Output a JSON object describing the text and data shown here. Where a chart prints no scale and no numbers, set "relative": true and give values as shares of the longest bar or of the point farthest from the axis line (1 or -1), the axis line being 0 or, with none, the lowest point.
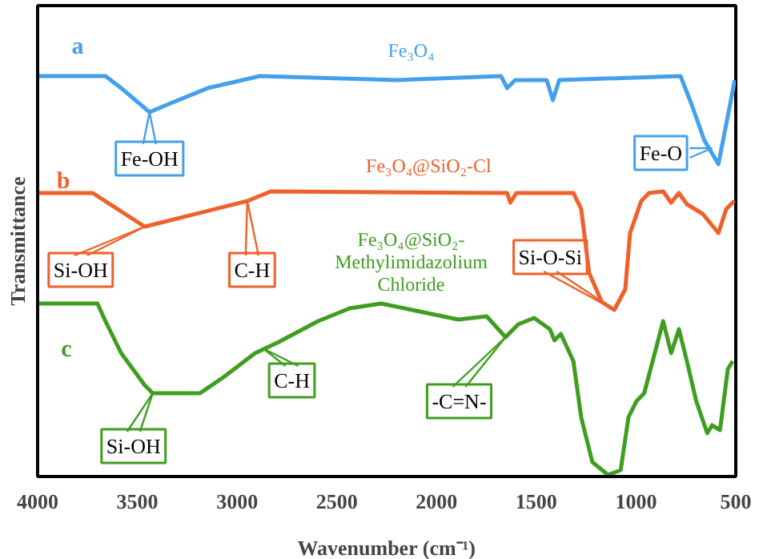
{
  "chart_data": {
    "type": "line",
    "relative": true,
    "xlabel": "Wavenumber (cm⁻¹)",
    "ylabel": "Transmittance",
    "xlim": [
      4000,
      500
    ],
    "xticks": [
      4000,
      3500,
      3000,
      2500,
      2000,
      1500,
      1000,
      500
    ],
    "grid": false,
    "series": [
      {
        "name": "a",
        "color": "#42a0ee",
        "x": [
          4000,
          3660,
          3581,
          3439,
          3344,
          3147,
          2886,
          2199,
          1677,
          1646,
          1606,
          1448,
          1417,
          1385,
          777,
          722,
          658,
          587,
          540,
          505
        ],
        "values": [
          1.0,
          1.0,
          0.97,
          0.91,
          0.93,
          0.97,
          1.0,
          0.99,
          1.0,
          0.97,
          0.99,
          0.99,
          0.94,
          0.99,
          1.0,
          0.93,
          0.84,
          0.78,
          0.9,
          0.99
        ]
      },
      {
        "name": "b",
        "color": "#f0602a",
        "x": [
          4000,
          3724,
          3463,
          2949,
          2831,
          1646,
          1630,
          1600,
          1448,
          1314,
          1275,
          1235,
          1172,
          1109,
          1054,
          1030,
          974,
          935,
          864,
          824,
          785,
          745,
          666,
          587,
          548,
          508
        ],
        "values": [
          0.708,
          0.708,
          0.624,
          0.688,
          0.712,
          0.708,
          0.684,
          0.708,
          0.708,
          0.708,
          0.668,
          0.508,
          0.436,
          0.416,
          0.468,
          0.608,
          0.688,
          0.708,
          0.712,
          0.684,
          0.708,
          0.68,
          0.656,
          0.608,
          0.668,
          0.688
        ]
      },
      {
        "name": "c",
        "color": "#3f9e1f",
        "x": [
          4000,
          3700,
          3660,
          3581,
          3463,
          3423,
          3186,
          3068,
          2910,
          2791,
          2594,
          2436,
          2278,
          1891,
          1749,
          1654,
          1591,
          1511,
          1432,
          1409,
          1377,
          1314,
          1275,
          1219,
          1140,
          1077,
          1038,
          998,
          959,
          864,
          824,
          785,
          745,
          698,
          643,
          619,
          579,
          540,
          516
        ],
        "values": [
          0.432,
          0.432,
          0.388,
          0.308,
          0.228,
          0.208,
          0.208,
          0.248,
          0.308,
          0.336,
          0.388,
          0.42,
          0.432,
          0.392,
          0.4,
          0.348,
          0.38,
          0.396,
          0.368,
          0.34,
          0.356,
          0.288,
          0.148,
          0.036,
          0.004,
          0.016,
          0.148,
          0.188,
          0.208,
          0.388,
          0.308,
          0.368,
          0.288,
          0.188,
          0.108,
          0.128,
          0.116,
          0.268,
          0.288
        ]
      }
    ],
    "annotations": [
      "Fe₃O₄",
      "Fe₃O₄@SiO₂-Cl",
      "Fe₃O₄@SiO₂-\nMethylimidazolium\nChloride",
      {
        "text": "Fe-OH",
        "x": 3439,
        "y": 0.91
      },
      {
        "text": "Fe-O",
        "x": 619,
        "y": 0.82
      },
      {
        "text": "Si-OH",
        "x": 3463,
        "y": 0.624
      },
      {
        "text": "C-H",
        "x": 2949,
        "y": 0.688
      },
      {
        "text": "Si-O-Si",
        "x": 1109,
        "y": 0.416
      },
      {
        "text": "Si-OH",
        "x": 3423,
        "y": 0.208
      },
      {
        "text": "C-H",
        "x": 2870,
        "y": 0.32
      },
      {
        "text": "-C=N-",
        "x": 1654,
        "y": 0.348
      }
    ]
  }
}
